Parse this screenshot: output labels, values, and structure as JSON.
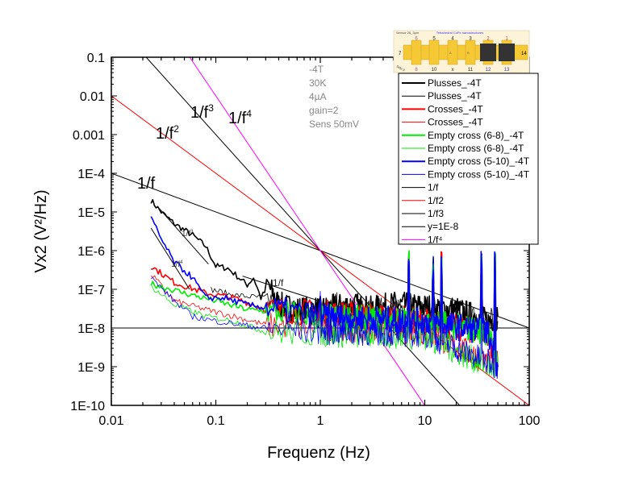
{
  "chart_data": {
    "type": "line",
    "xlabel": "Frequenz (Hz)",
    "ylabel": "Vx2 (V²/Hz)",
    "xscale": "log",
    "yscale": "log",
    "xlim": [
      0.01,
      100
    ],
    "ylim": [
      1e-10,
      0.1
    ],
    "grid": false,
    "legend_position": "top-right",
    "x_ticks": [
      "0.01",
      "0.1",
      "1",
      "10",
      "100"
    ],
    "y_ticks": [
      "0.1",
      "0.01",
      "0.001",
      "1E-4",
      "1E-5",
      "1E-6",
      "1E-7",
      "1E-8",
      "1E-9",
      "1E-10"
    ],
    "annotation_block": [
      "-4T",
      "30K",
      "4µA",
      "gain=2",
      "Sens 50mV"
    ],
    "line_labels": {
      "f1": "1/f",
      "f2_base": "1/f",
      "f2_exp": "2",
      "f3_base": "1/f",
      "f3_exp": "3",
      "f4_base": "1/f",
      "f4_exp": "4",
      "local_f3_base": "1/f",
      "local_f3_exp": "3",
      "local_f4_base": "1/f",
      "local_f4_exp": "4",
      "local_f1": "1/f"
    },
    "series": [
      {
        "name": "Plusses_-4T",
        "color": "#000000",
        "width": 2,
        "points": [
          [
            0.024,
            2e-05
          ],
          [
            0.03,
            1e-05
          ],
          [
            0.04,
            5e-06
          ],
          [
            0.06,
            2.5e-06
          ],
          [
            0.08,
            1.3e-06
          ],
          [
            0.1,
            4e-07
          ],
          [
            0.13,
            3.5e-07
          ],
          [
            0.16,
            2.2e-07
          ],
          [
            0.2,
            1.3e-07
          ],
          [
            0.23,
            2e-07
          ],
          [
            0.27,
            6e-08
          ],
          [
            0.32,
            1.2e-07
          ],
          [
            0.4,
            4e-08
          ],
          [
            0.6,
            3e-08
          ],
          [
            1,
            3e-08
          ],
          [
            2,
            4e-08
          ],
          [
            3,
            3e-08
          ],
          [
            5,
            4e-08
          ],
          [
            10,
            3.5e-08
          ],
          [
            20,
            3e-08
          ],
          [
            30,
            2e-08
          ],
          [
            40,
            1.5e-08
          ],
          [
            50,
            2e-08
          ]
        ]
      },
      {
        "name": "Plusses_-4T",
        "color": "#000000",
        "width": 1,
        "points": [
          [
            0.09,
            1e-07
          ],
          [
            0.15,
            7e-08
          ],
          [
            0.3,
            6e-08
          ],
          [
            0.5,
            3e-08
          ],
          [
            1,
            2e-08
          ],
          [
            1.5,
            4e-08
          ],
          [
            2,
            2e-08
          ],
          [
            3,
            3e-08
          ],
          [
            10,
            2e-08
          ],
          [
            50,
            1.5e-08
          ]
        ]
      },
      {
        "name": "Crosses_-4T",
        "color": "#ff0000",
        "width": 2,
        "points": [
          [
            0.024,
            4e-07
          ],
          [
            0.04,
            1.5e-07
          ],
          [
            0.08,
            8e-08
          ],
          [
            0.15,
            6e-08
          ],
          [
            0.3,
            3e-08
          ],
          [
            1,
            2.5e-08
          ],
          [
            3,
            2e-08
          ],
          [
            10,
            1.5e-08
          ],
          [
            20,
            1e-08
          ],
          [
            40,
            8e-09
          ],
          [
            50,
            1e-09
          ]
        ]
      },
      {
        "name": "Crosses_-4T",
        "color": "#ff0000",
        "width": 1,
        "points": [
          [
            0.024,
            2.5e-07
          ],
          [
            0.04,
            5e-08
          ],
          [
            0.08,
            3e-08
          ],
          [
            0.15,
            2e-08
          ],
          [
            0.3,
            1.2e-08
          ],
          [
            1,
            1e-08
          ],
          [
            10,
            8e-09
          ],
          [
            50,
            1e-09
          ]
        ]
      },
      {
        "name": "Empty cross (6-8)_-4T",
        "color": "#00ee00",
        "width": 2,
        "points": [
          [
            0.024,
            1.4e-07
          ],
          [
            0.05,
            8e-08
          ],
          [
            0.1,
            5e-08
          ],
          [
            0.2,
            3e-08
          ],
          [
            1,
            2e-08
          ],
          [
            10,
            1.5e-08
          ],
          [
            40,
            8e-09
          ],
          [
            50,
            1e-09
          ]
        ]
      },
      {
        "name": "Empty cross (6-8)_-4T",
        "color": "#00ee00",
        "width": 1,
        "points": [
          [
            0.024,
            1.2e-07
          ],
          [
            0.04,
            4e-08
          ],
          [
            0.08,
            2e-08
          ],
          [
            0.15,
            1.5e-08
          ],
          [
            0.3,
            8e-09
          ],
          [
            1,
            7e-09
          ],
          [
            10,
            6e-09
          ],
          [
            50,
            8e-10
          ]
        ]
      },
      {
        "name": "Empty cross (5-10)_-4T",
        "color": "#0000ff",
        "width": 2,
        "points": [
          [
            0.024,
            7e-06
          ],
          [
            0.03,
            2e-06
          ],
          [
            0.04,
            5e-07
          ],
          [
            0.06,
            2e-07
          ],
          [
            0.08,
            6e-08
          ],
          [
            0.12,
            6e-08
          ],
          [
            0.2,
            4e-08
          ],
          [
            1,
            2e-08
          ],
          [
            10,
            1.5e-08
          ],
          [
            40,
            8e-09
          ],
          [
            50,
            1e-09
          ]
        ]
      },
      {
        "name": "Empty cross (5-10)_-4T",
        "color": "#0000ff",
        "width": 1,
        "points": [
          [
            0.024,
            2e-07
          ],
          [
            0.04,
            5e-08
          ],
          [
            0.06,
            2e-08
          ],
          [
            0.1,
            1.5e-08
          ],
          [
            0.3,
            1e-08
          ],
          [
            1,
            8e-09
          ],
          [
            10,
            7e-09
          ],
          [
            50,
            1e-09
          ]
        ]
      }
    ],
    "spikes": [
      [
        1.0,
        1e-07
      ],
      [
        7,
        1e-06
      ],
      [
        12,
        1e-06
      ],
      [
        14.5,
        1e-06
      ],
      [
        35,
        1e-06
      ],
      [
        47,
        1e-06
      ]
    ],
    "reference_lines": [
      {
        "name": "1/f",
        "color": "#000000",
        "exponent": 1,
        "amplitude": 1e-06
      },
      {
        "name": "1/f2",
        "color": "#ff0000",
        "exponent": 2,
        "amplitude": 1e-06
      },
      {
        "name": "1/f3",
        "color": "#000000",
        "exponent": 3,
        "amplitude": 1e-06
      },
      {
        "name": "y=1E-8",
        "color": "#000000",
        "exponent": 0,
        "amplitude": 1e-08
      },
      {
        "name": "1/f⁴",
        "color": "#ff00ff",
        "exponent": 4,
        "amplitude": 1e-06
      }
    ],
    "local_fits": [
      {
        "label": "1/f3",
        "points": [
          [
            0.028,
            1.33e-05
          ],
          [
            0.085,
            4.5e-07
          ]
        ]
      },
      {
        "label": "1/f4",
        "points": [
          [
            0.024,
            3.8e-06
          ],
          [
            0.056,
            1e-07
          ]
        ]
      },
      {
        "label": "1/f",
        "points": [
          [
            0.18,
            2.2e-07
          ],
          [
            0.98,
            5e-08
          ]
        ]
      }
    ]
  },
  "legend": [
    {
      "label": "Plusses_-4T",
      "color": "#000000",
      "width": 2
    },
    {
      "label": "Plusses_-4T",
      "color": "#000000",
      "width": 1
    },
    {
      "label": "Crosses_-4T",
      "color": "#ff0000",
      "width": 2
    },
    {
      "label": "Crosses_-4T",
      "color": "#ff0000",
      "width": 1
    },
    {
      "label": "Empty cross (6-8)_-4T",
      "color": "#00ee00",
      "width": 2
    },
    {
      "label": "Empty cross (6-8)_-4T",
      "color": "#00ee00",
      "width": 1
    },
    {
      "label": "Empty cross (5-10)_-4T",
      "color": "#0000ff",
      "width": 2
    },
    {
      "label": "Empty cross (5-10)_-4T",
      "color": "#0000ff",
      "width": 1
    },
    {
      "label": "1/f",
      "color": "#000000",
      "width": 1
    },
    {
      "label": "1/f2",
      "color": "#ff0000",
      "width": 1
    },
    {
      "label": "1/f3",
      "color": "#000000",
      "width": 1
    },
    {
      "label": "y=1E-8",
      "color": "#000000",
      "width": 1
    },
    {
      "label": "1/f⁴",
      "color": "#ff00ff",
      "width": 1
    }
  ],
  "inset": {
    "title_left": "Sensor 26_3µm",
    "title_center": "Tetrahedral CoFe nanostructures",
    "top_pads": [
      "6",
      "5",
      "4",
      "3",
      "2",
      "1"
    ],
    "bottom_pads": [
      "8",
      "10",
      "x",
      "11",
      "12",
      "13"
    ],
    "left_pad": "7",
    "right_pad": "14",
    "cross_labels": [
      "A",
      "B"
    ],
    "corner_label": "Side 9"
  }
}
